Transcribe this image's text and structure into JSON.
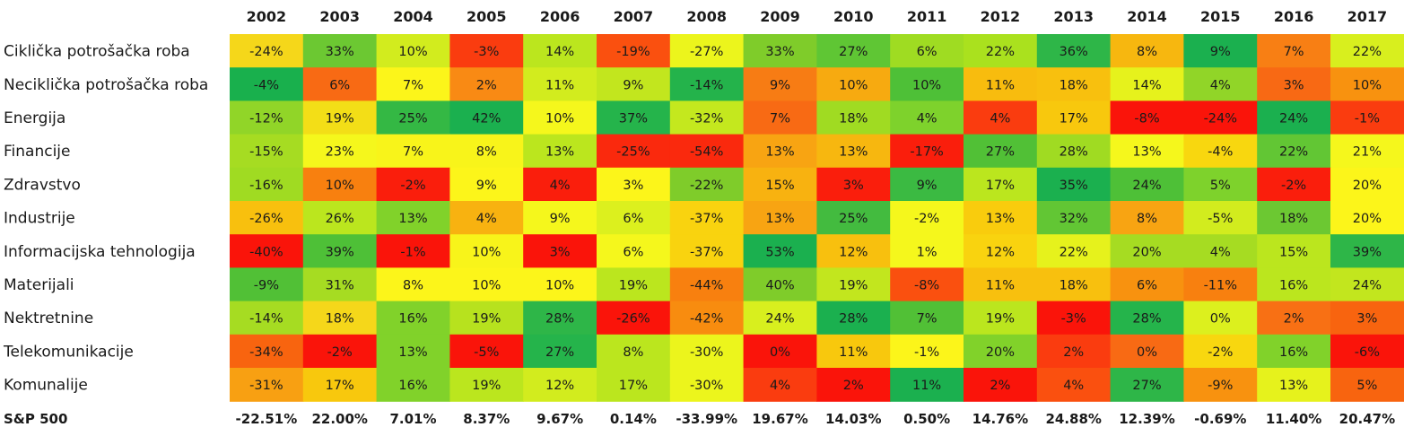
{
  "chart_data": {
    "type": "heatmap",
    "years": [
      "2002",
      "2003",
      "2004",
      "2005",
      "2006",
      "2007",
      "2008",
      "2009",
      "2010",
      "2011",
      "2012",
      "2013",
      "2014",
      "2015",
      "2016",
      "2017"
    ],
    "sectors": [
      {
        "name": "Ciklička potrošačka roba",
        "values": [
          "-24%",
          "33%",
          "10%",
          "-3%",
          "14%",
          "-19%",
          "-27%",
          "33%",
          "27%",
          "6%",
          "22%",
          "36%",
          "8%",
          "9%",
          "7%",
          "22%"
        ],
        "colors": [
          "#f5d71a",
          "#6cc832",
          "#d2ec1e",
          "#fa3c0f",
          "#bbe61e",
          "#fa500f",
          "#ecf51c",
          "#7fcc2a",
          "#5fc634",
          "#9fdc22",
          "#aae11e",
          "#2eb648",
          "#f7b70f",
          "#1bb04f",
          "#f87f14",
          "#d8ef1e"
        ]
      },
      {
        "name": "Neciklička potrošačka roba",
        "values": [
          "-4%",
          "6%",
          "7%",
          "2%",
          "11%",
          "9%",
          "-14%",
          "9%",
          "10%",
          "10%",
          "11%",
          "18%",
          "14%",
          "4%",
          "3%",
          "10%"
        ],
        "colors": [
          "#19b04d",
          "#f86a14",
          "#fcf51a",
          "#f98a14",
          "#d2ec1e",
          "#c2e61e",
          "#24b34b",
          "#f77c14",
          "#f7aa10",
          "#4ec037",
          "#f8bc0e",
          "#f8c00e",
          "#e6f21c",
          "#91d528",
          "#f86914",
          "#f8920f"
        ]
      },
      {
        "name": "Energija",
        "values": [
          "-12%",
          "19%",
          "25%",
          "42%",
          "10%",
          "37%",
          "-32%",
          "7%",
          "18%",
          "4%",
          "4%",
          "17%",
          "-8%",
          "-24%",
          "24%",
          "-1%"
        ],
        "colors": [
          "#91d528",
          "#f3de17",
          "#34b844",
          "#1bb04f",
          "#f5f71c",
          "#25b44b",
          "#c4e81e",
          "#f86a14",
          "#a0db22",
          "#7ed22c",
          "#fa3c0f",
          "#f8c80d",
          "#fa140a",
          "#fa140a",
          "#1bb04f",
          "#fa3c0f"
        ]
      },
      {
        "name": "Financije",
        "values": [
          "-15%",
          "23%",
          "7%",
          "8%",
          "13%",
          "-25%",
          "-54%",
          "13%",
          "13%",
          "-17%",
          "27%",
          "28%",
          "13%",
          "-4%",
          "22%",
          "21%"
        ],
        "colors": [
          "#a6dc22",
          "#f5f71c",
          "#f8f41a",
          "#f8f41a",
          "#bbe61e",
          "#fa290d",
          "#fa290d",
          "#f8a412",
          "#f7b70f",
          "#fa1e0c",
          "#51c036",
          "#a0db22",
          "#f5f71c",
          "#f8d70f",
          "#62c634",
          "#f5f71c"
        ]
      },
      {
        "name": "Zdravstvo",
        "values": [
          "-16%",
          "10%",
          "-2%",
          "9%",
          "4%",
          "3%",
          "-22%",
          "15%",
          "3%",
          "9%",
          "17%",
          "35%",
          "24%",
          "5%",
          "-2%",
          "20%"
        ],
        "colors": [
          "#a0db22",
          "#f8800f",
          "#fa1e0c",
          "#fcf51a",
          "#fa1e0c",
          "#fcf51a",
          "#7fcc2a",
          "#f8b210",
          "#fa1e0c",
          "#3bba42",
          "#bbe61e",
          "#1bb04f",
          "#4ec037",
          "#7ed22c",
          "#fa1e0c",
          "#fcf51a"
        ]
      },
      {
        "name": "Industrije",
        "values": [
          "-26%",
          "26%",
          "13%",
          "4%",
          "9%",
          "6%",
          "-37%",
          "13%",
          "25%",
          "-2%",
          "13%",
          "32%",
          "8%",
          "-5%",
          "18%",
          "20%"
        ],
        "colors": [
          "#f8c00e",
          "#bbe61e",
          "#81d22a",
          "#f8b210",
          "#f5f71c",
          "#dcf01e",
          "#f9d30f",
          "#f8a412",
          "#43bb3f",
          "#f5f71c",
          "#f9cc0d",
          "#62c634",
          "#f8a412",
          "#d2ec1e",
          "#6cc832",
          "#fcf51a"
        ]
      },
      {
        "name": "Informacijska tehnologija",
        "values": [
          "-40%",
          "39%",
          "-1%",
          "10%",
          "3%",
          "6%",
          "-37%",
          "53%",
          "12%",
          "1%",
          "12%",
          "22%",
          "20%",
          "4%",
          "15%",
          "39%"
        ],
        "colors": [
          "#fa140a",
          "#4ec037",
          "#fa140a",
          "#f8f41a",
          "#fa140a",
          "#f5f71c",
          "#f9d30f",
          "#1bb04f",
          "#f8c00e",
          "#f5f71c",
          "#f9d30f",
          "#e6f21c",
          "#a6dc22",
          "#a6dc22",
          "#bbe61e",
          "#2eb648"
        ]
      },
      {
        "name": "Materijali",
        "values": [
          "-9%",
          "31%",
          "8%",
          "10%",
          "10%",
          "19%",
          "-44%",
          "40%",
          "19%",
          "-8%",
          "11%",
          "18%",
          "6%",
          "-11%",
          "16%",
          "24%"
        ],
        "colors": [
          "#51c036",
          "#a6dc22",
          "#fcf51a",
          "#fcf51a",
          "#fcf51a",
          "#bbe61e",
          "#f8800f",
          "#7fcc2a",
          "#c2e61e",
          "#fa500f",
          "#f8c00e",
          "#f8c00e",
          "#f8920f",
          "#f8800f",
          "#bbe61e",
          "#c2e61e"
        ]
      },
      {
        "name": "Nektretnine",
        "values": [
          "-14%",
          "18%",
          "16%",
          "19%",
          "28%",
          "-26%",
          "-42%",
          "24%",
          "28%",
          "7%",
          "19%",
          "-3%",
          "28%",
          "0%",
          "2%",
          "3%"
        ],
        "colors": [
          "#a6dc22",
          "#f5d71a",
          "#81d22a",
          "#b7e21e",
          "#2eb648",
          "#fa140a",
          "#f88c0f",
          "#d8ef1e",
          "#1bb04f",
          "#51c036",
          "#bbe61e",
          "#fa140a",
          "#25b44b",
          "#dcf01e",
          "#f87014",
          "#f8640f"
        ]
      },
      {
        "name": "Telekomunikacije",
        "values": [
          "-34%",
          "-2%",
          "13%",
          "-5%",
          "27%",
          "8%",
          "-30%",
          "0%",
          "11%",
          "-1%",
          "20%",
          "2%",
          "0%",
          "-2%",
          "16%",
          "-6%"
        ],
        "colors": [
          "#f8640f",
          "#fa140a",
          "#81d22a",
          "#fa140a",
          "#25b44b",
          "#bbe61e",
          "#ecf51c",
          "#fa140a",
          "#f8c80d",
          "#fcf51a",
          "#81d22a",
          "#fa3c0f",
          "#f86a14",
          "#f8d70f",
          "#81d22a",
          "#fa140a"
        ]
      },
      {
        "name": "Komunalije",
        "values": [
          "-31%",
          "17%",
          "16%",
          "19%",
          "12%",
          "17%",
          "-30%",
          "4%",
          "2%",
          "11%",
          "2%",
          "4%",
          "27%",
          "-9%",
          "13%",
          "5%"
        ],
        "colors": [
          "#f8a012",
          "#f8c80d",
          "#81d22a",
          "#bbe61e",
          "#d2ec1e",
          "#bbe61e",
          "#ecf51c",
          "#fa3c0f",
          "#fa140a",
          "#1bb04f",
          "#fa140a",
          "#fa500f",
          "#2eb648",
          "#f8920f",
          "#e6f21c",
          "#f8640f"
        ]
      }
    ],
    "total": {
      "name": "S&P 500",
      "values": [
        "-22.51%",
        "22.00%",
        "7.01%",
        "8.37%",
        "9.67%",
        "0.14%",
        "-33.99%",
        "19.67%",
        "14.03%",
        "0.50%",
        "14.76%",
        "24.88%",
        "12.39%",
        "-0.69%",
        "11.40%",
        "20.47%"
      ]
    }
  }
}
